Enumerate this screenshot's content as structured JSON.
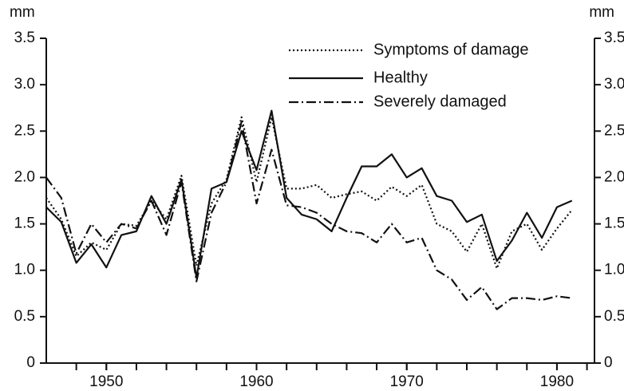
{
  "chart_data": {
    "type": "line",
    "y_label": "mm",
    "y2_label": "mm",
    "x": [
      1946,
      1947,
      1948,
      1949,
      1950,
      1951,
      1952,
      1953,
      1954,
      1955,
      1956,
      1957,
      1958,
      1959,
      1960,
      1961,
      1962,
      1963,
      1964,
      1965,
      1966,
      1967,
      1968,
      1969,
      1970,
      1971,
      1972,
      1973,
      1974,
      1975,
      1976,
      1977,
      1978,
      1979,
      1980,
      1981
    ],
    "xlim": [
      1946,
      1982.5
    ],
    "xticks": [
      1950,
      1960,
      1970,
      1980
    ],
    "x_minor_ticks": [
      1948,
      1950,
      1952,
      1954,
      1956,
      1958,
      1960,
      1962,
      1964,
      1966,
      1968,
      1970,
      1972,
      1974,
      1976,
      1978,
      1980,
      1982
    ],
    "ylim": [
      0,
      3.5
    ],
    "yticks": [
      0,
      0.5,
      {
        "value": 1,
        "label": "1.0"
      },
      1.5,
      {
        "value": 2,
        "label": "2.0"
      },
      2.5,
      {
        "value": 3,
        "label": "3.0"
      },
      3.5
    ],
    "y2lim": [
      0,
      3.5
    ],
    "y2ticks": [
      0,
      0.5,
      {
        "value": 1,
        "label": "1.0"
      },
      1.5,
      {
        "value": 2,
        "label": "2.0"
      },
      2.5,
      {
        "value": 3,
        "label": "3.0"
      },
      3.5
    ],
    "series": [
      {
        "name": "Symptoms of damage",
        "color": "#111111",
        "style": "dotted",
        "values": [
          1.78,
          1.55,
          1.15,
          1.3,
          1.22,
          1.5,
          1.48,
          1.75,
          1.55,
          2.02,
          1.05,
          1.72,
          1.98,
          2.65,
          1.95,
          2.65,
          1.88,
          1.88,
          1.92,
          1.78,
          1.82,
          1.85,
          1.75,
          1.9,
          1.8,
          1.92,
          1.5,
          1.42,
          1.2,
          1.5,
          1.02,
          1.42,
          1.5,
          1.22,
          1.45,
          1.65
        ]
      },
      {
        "name": "Healthy",
        "color": "#111111",
        "style": "solid",
        "values": [
          1.68,
          1.52,
          1.08,
          1.28,
          1.03,
          1.38,
          1.42,
          1.8,
          1.5,
          1.98,
          0.92,
          1.88,
          1.95,
          2.5,
          2.08,
          2.72,
          1.78,
          1.6,
          1.55,
          1.42,
          1.78,
          2.12,
          2.12,
          2.25,
          2.0,
          2.1,
          1.8,
          1.75,
          1.52,
          1.6,
          1.1,
          1.32,
          1.62,
          1.35,
          1.68,
          1.75
        ]
      },
      {
        "name": "Severely damaged",
        "color": "#111111",
        "style": "dashdot",
        "values": [
          2.0,
          1.78,
          1.18,
          1.5,
          1.3,
          1.5,
          1.45,
          1.75,
          1.38,
          1.95,
          0.88,
          1.62,
          1.95,
          2.6,
          1.72,
          2.3,
          1.7,
          1.68,
          1.62,
          1.5,
          1.42,
          1.4,
          1.3,
          1.5,
          1.3,
          1.35,
          1.0,
          0.9,
          0.68,
          0.82,
          0.58,
          0.7,
          0.7,
          0.68,
          0.72,
          0.7
        ]
      }
    ]
  }
}
